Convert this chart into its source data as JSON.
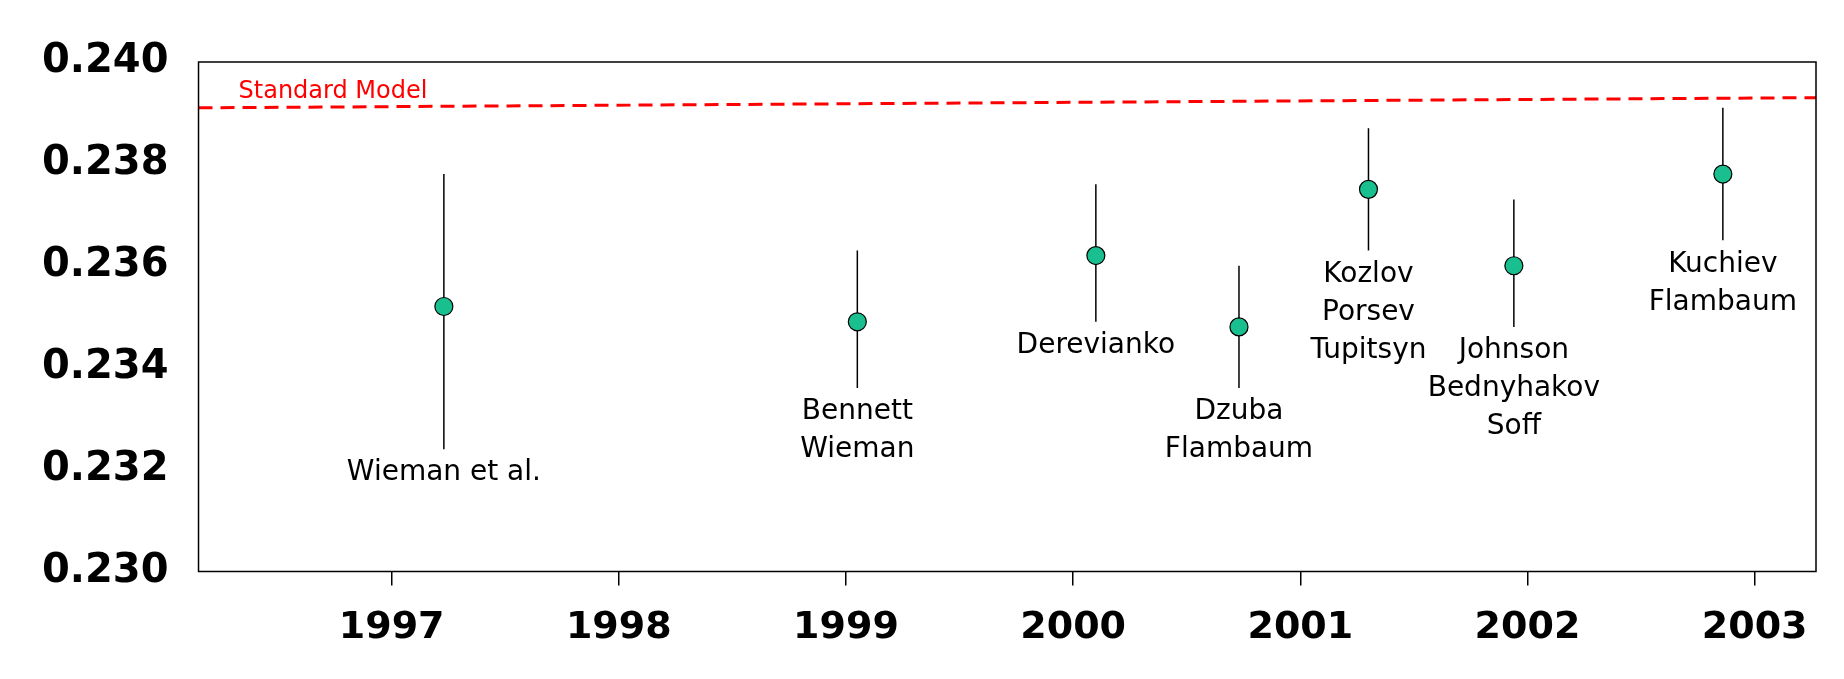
{
  "chart_data": {
    "type": "scatter",
    "xlim": [
      1996.15,
      2003.27
    ],
    "ylim": [
      0.23,
      0.24
    ],
    "xticks": [
      1997,
      1998,
      1999,
      2000,
      2001,
      2002,
      2003
    ],
    "yticks": [
      {
        "value": 0.23,
        "label": "0.230"
      },
      {
        "value": 0.232,
        "label": "0.232"
      },
      {
        "value": 0.234,
        "label": "0.234"
      },
      {
        "value": 0.236,
        "label": "0.236"
      },
      {
        "value": 0.238,
        "label": "0.238"
      },
      {
        "value": 0.24,
        "label": "0.240"
      }
    ],
    "grid": false,
    "legend": false,
    "marker": "circle",
    "series": [
      {
        "color": "#1abf8f",
        "x": [
          1997.23,
          1999.05,
          2000.1,
          2000.73,
          2001.3,
          2001.94,
          2002.86
        ],
        "values": [
          0.2352,
          0.2349,
          0.2362,
          0.2348,
          0.2375,
          0.236,
          0.2378
        ],
        "errors": [
          [
            0.2324,
            0.2378
          ],
          [
            0.2336,
            0.2363
          ],
          [
            0.2349,
            0.2376
          ],
          [
            0.2336,
            0.236
          ],
          [
            0.2363,
            0.2387
          ],
          [
            0.2348,
            0.2373
          ],
          [
            0.2365,
            0.2391
          ]
        ]
      },
      {
        "type": "line",
        "name": "Standard Model",
        "color": "#ff0000",
        "line_style": "dashed",
        "marker": "none",
        "x": [
          1996.15,
          2003.27
        ],
        "values": [
          0.2391,
          0.2393
        ]
      }
    ],
    "annotations": [
      {
        "text": "Wieman et al.",
        "x": 1997.23,
        "y": 0.2324
      },
      {
        "text": "Bennett\nWieman",
        "x": 1999.05,
        "y": 0.2336
      },
      {
        "text": "Derevianko",
        "x": 2000.1,
        "y": 0.2349
      },
      {
        "text": "Dzuba\nFlambaum",
        "x": 2000.73,
        "y": 0.2336
      },
      {
        "text": "Kozlov\nPorsev\nTupitsyn",
        "x": 2001.3,
        "y": 0.2363
      },
      {
        "text": "Johnson\nBednyhakov\nSoff",
        "x": 2001.94,
        "y": 0.2348
      },
      {
        "text": "Kuchiev\nFlambaum",
        "x": 2002.86,
        "y": 0.2365
      }
    ]
  }
}
